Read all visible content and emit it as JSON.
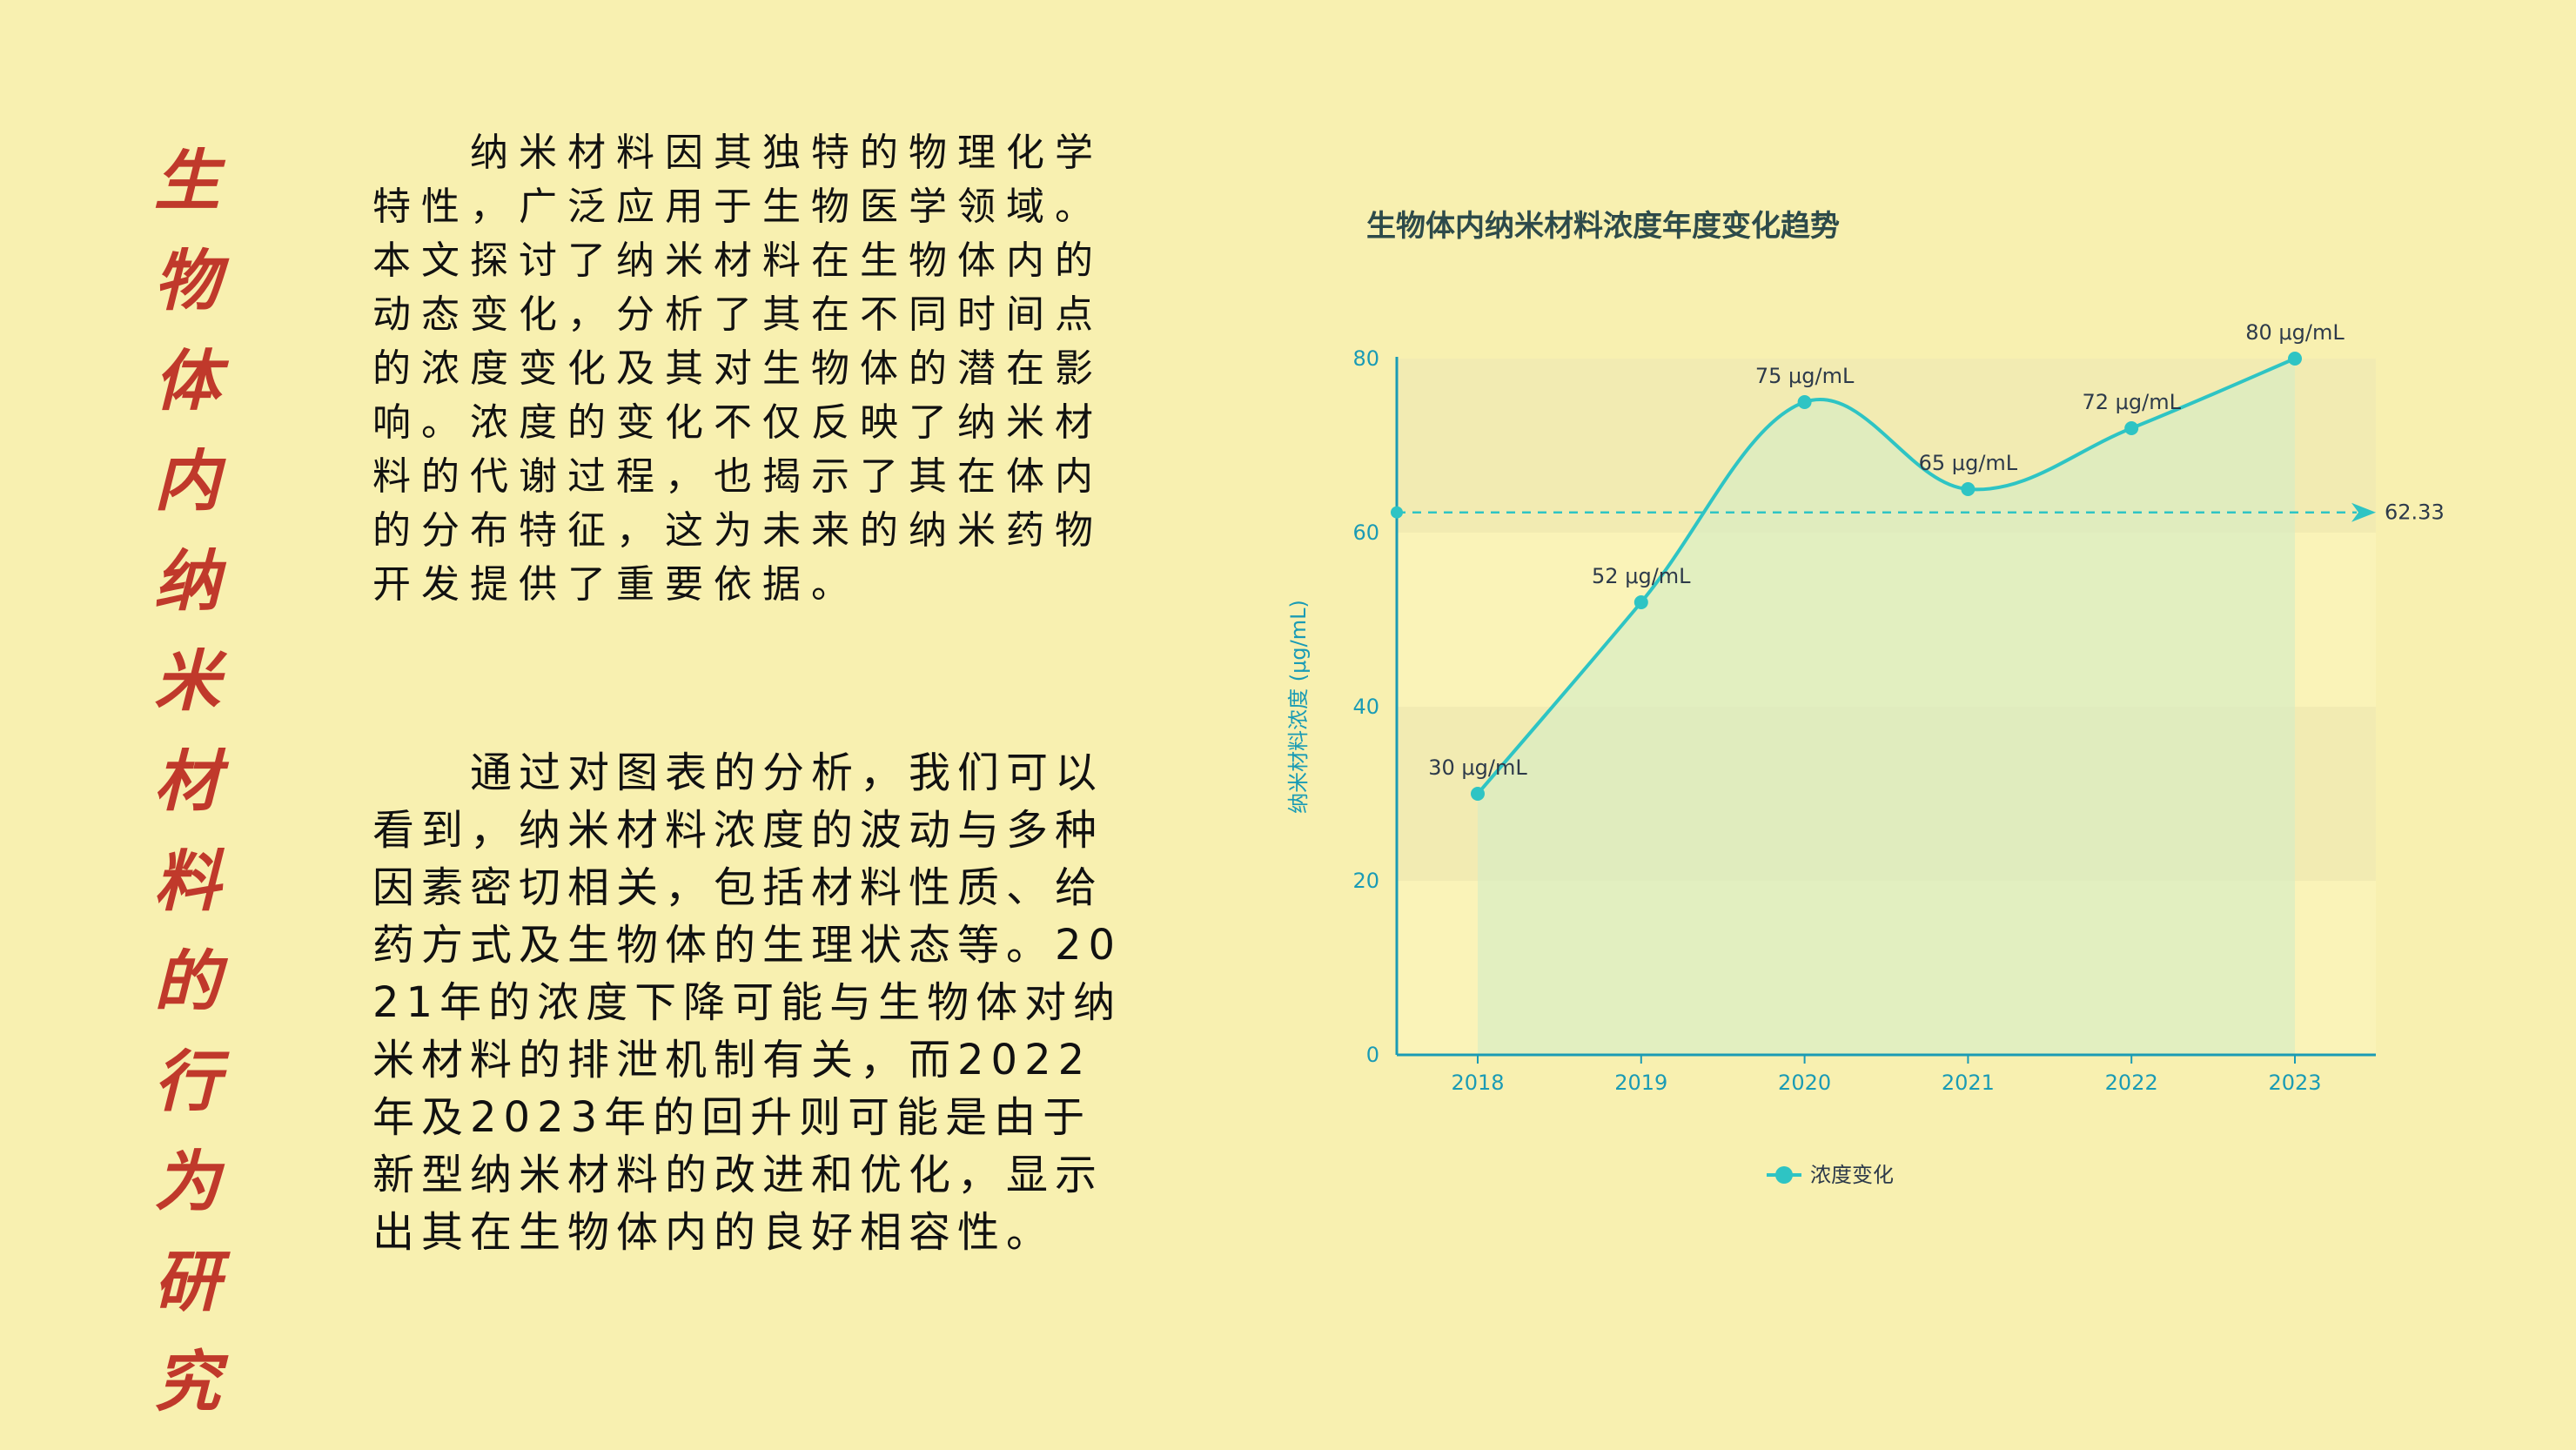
{
  "title": "生物体内纳米材料的行为研究",
  "paragraph_1": "纳米材料因其独特的物理化学特性，广泛应用于生物医学领域。本文探讨了纳米材料在生物体内的动态变化，分析了其在不同时间点的浓度变化及其对生物体的潜在影响。浓度的变化不仅反映了纳米材料的代谢过程，也揭示了其在体内的分布特征，这为未来的纳米药物开发提供了重要依据。",
  "paragraph_2": "通过对图表的分析，我们可以看到，纳米材料浓度的波动与多种因素密切相关，包括材料性质、给药方式及生物体的生理状态等。2021年的浓度下降可能与生物体对纳米材料的排泄机制有关，而2022年及2023年的回升则可能是由于新型纳米材料的改进和优化，显示出其在生物体内的良好相容性。",
  "colors": {
    "background": "#f8f0b0",
    "title": "#c0392b",
    "line": "#2ec4c4",
    "axis": "#1a9bb5",
    "area": "#d6ecc4"
  },
  "chart_data": {
    "type": "line",
    "title": "生物体内纳米材料浓度年度变化趋势",
    "ylabel": "纳米材料浓度 (μg/mL)",
    "xlabel": "",
    "categories": [
      "2018",
      "2019",
      "2020",
      "2021",
      "2022",
      "2023"
    ],
    "series": [
      {
        "name": "浓度变化",
        "values": [
          30,
          52,
          75,
          65,
          72,
          80
        ],
        "labels": [
          "30 μg/mL",
          "52 μg/mL",
          "75 μg/mL",
          "65 μg/mL",
          "72 μg/mL",
          "80 μg/mL"
        ]
      }
    ],
    "ylim": [
      0,
      80
    ],
    "yticks": [
      0,
      20,
      40,
      60,
      80
    ],
    "average_line": {
      "value": 62.33,
      "label": "62.33"
    },
    "smooth": true,
    "area_fill": true,
    "legend_position": "bottom"
  }
}
